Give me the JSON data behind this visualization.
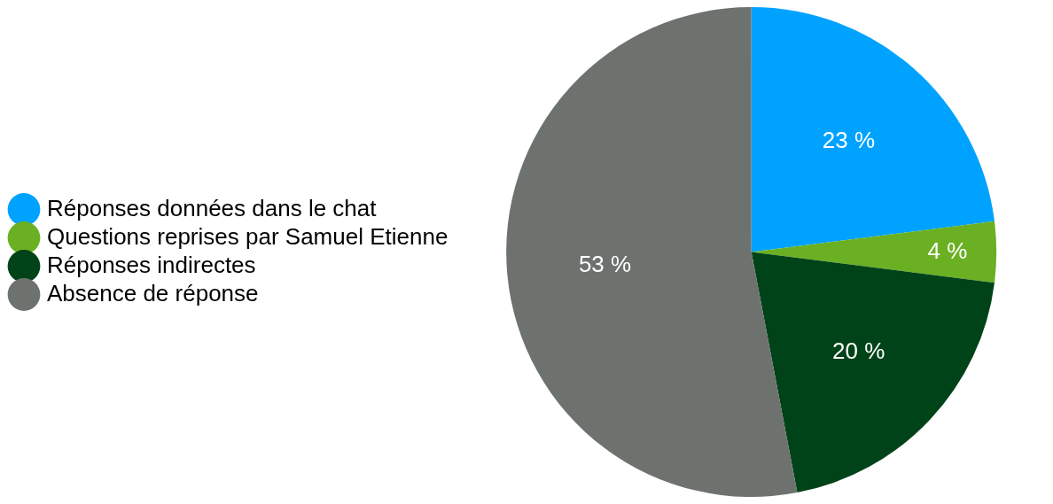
{
  "chart_data": {
    "type": "pie",
    "categories": [
      "Réponses données dans le chat",
      "Questions reprises par Samuel Etienne",
      "Réponses indirectes",
      "Absence de réponse"
    ],
    "values": [
      23,
      4,
      20,
      53
    ],
    "colors": [
      "#00a2ff",
      "#6ab022",
      "#004318",
      "#6d726f"
    ],
    "value_labels": [
      "23 %",
      "4 %",
      "20 %",
      "53 %"
    ],
    "legend": "left"
  }
}
